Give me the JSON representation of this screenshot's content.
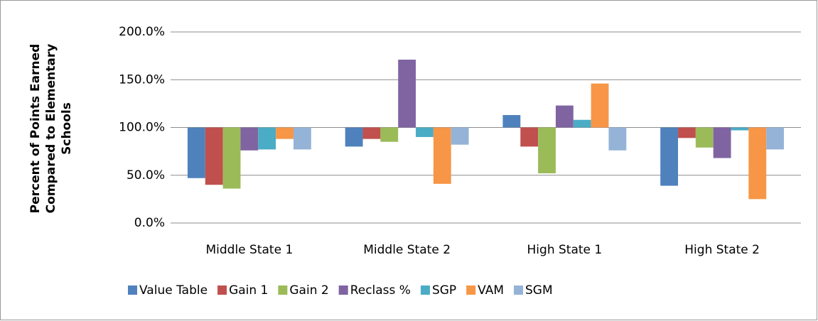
{
  "chart_data": {
    "type": "bar",
    "y_label": "Percent of Points Earned Compared to Elementary Schools",
    "categories": [
      "Middle State 1",
      "Middle State 2",
      "High State 1",
      "High State 2"
    ],
    "series": [
      {
        "name": "Value Table",
        "color": "#4F81BD",
        "values": [
          47,
          80,
          113,
          39
        ]
      },
      {
        "name": "Gain 1",
        "color": "#C0504D",
        "values": [
          40,
          88,
          80,
          89
        ]
      },
      {
        "name": "Gain 2",
        "color": "#9BBB59",
        "values": [
          36,
          85,
          52,
          79
        ]
      },
      {
        "name": "Reclass %",
        "color": "#8064A2",
        "values": [
          76,
          171,
          123,
          68
        ]
      },
      {
        "name": "SGP",
        "color": "#4BACC6",
        "values": [
          77,
          90,
          108,
          97
        ]
      },
      {
        "name": "VAM",
        "color": "#F79646",
        "values": [
          88,
          41,
          146,
          25
        ]
      },
      {
        "name": "SGM",
        "color": "#95B3D7",
        "values": [
          77,
          82,
          76,
          77
        ]
      }
    ],
    "ylim": [
      0,
      200
    ],
    "yticks": [
      {
        "value": 0,
        "label": "0.0%"
      },
      {
        "value": 50,
        "label": "50.0%"
      },
      {
        "value": 100,
        "label": "100.0%"
      },
      {
        "value": 150,
        "label": "150.0%"
      },
      {
        "value": 200,
        "label": "200.0%"
      }
    ],
    "x_axis_crosses": 100,
    "grid": true,
    "legend": "bottom"
  }
}
